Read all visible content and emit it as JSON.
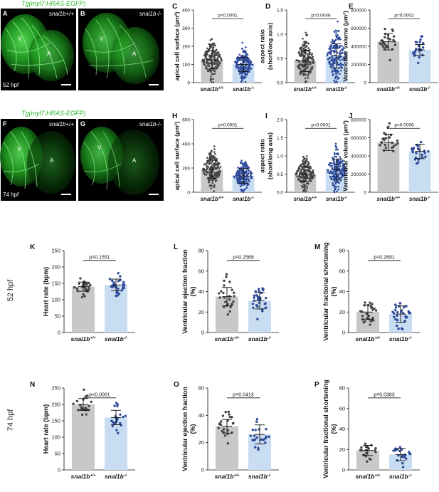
{
  "figure": {
    "construct_label": "Tg(myl7:HRAS-EGFP)",
    "row_stage_labels": [
      "52 hpf",
      "74 hpf"
    ],
    "genotype_wt": "snai1b+/+",
    "genotype_mut": "snai1b-/-"
  },
  "micrographs": [
    {
      "letter": "A",
      "genotype": "snai1b+/+",
      "chamber_labels": [
        "V",
        "A"
      ],
      "stage": "52 hpf"
    },
    {
      "letter": "B",
      "genotype": "snai1b-/-",
      "chamber_labels": [
        "V",
        "A"
      ],
      "stage": ""
    },
    {
      "letter": "F",
      "genotype": "snai1b+/+",
      "chamber_labels": [
        "V",
        "A"
      ],
      "stage": "74 hpf"
    },
    {
      "letter": "G",
      "genotype": "snai1b-/-",
      "chamber_labels": [
        "V",
        "A"
      ],
      "stage": ""
    }
  ],
  "colors": {
    "wt_bar": "#c8c8c8",
    "mut_bar": "#c9ddf2",
    "wt_dot": "#444444",
    "mut_dot": "#2d4a9a",
    "fluor": "#3ec83e"
  },
  "chart_data": [
    {
      "letter": "C",
      "type": "bar",
      "ylabel": "apical cell surface (μm²)",
      "yticks": [
        "0",
        "100",
        "200",
        "300",
        "400"
      ],
      "ylim": [
        0,
        400
      ],
      "categories": [
        "snai1b+/+",
        "snai1b-/-"
      ],
      "means": [
        125,
        100
      ],
      "sd": [
        50,
        40
      ],
      "n": [
        180,
        180
      ],
      "pvalue": "p<0.0001"
    },
    {
      "letter": "D",
      "type": "bar",
      "ylabel": "aspect ratio (short/long axis)",
      "yticks": [
        "0.0",
        "0.5",
        "1.0",
        "1.5"
      ],
      "ylim": [
        0,
        1.5
      ],
      "categories": [
        "snai1b+/+",
        "snai1b-/-"
      ],
      "means": [
        0.45,
        0.55
      ],
      "sd": [
        0.22,
        0.25
      ],
      "n": [
        180,
        180
      ],
      "pvalue": "p=0.0046"
    },
    {
      "letter": "E",
      "type": "bar",
      "ylabel": "Ventricular volume (μm³)",
      "yticks": [
        "0",
        "200000",
        "400000",
        "600000",
        "800000"
      ],
      "ylim": [
        0,
        800000
      ],
      "categories": [
        "snai1b+/+",
        "snai1b-/-"
      ],
      "means": [
        450000,
        360000
      ],
      "sd": [
        90000,
        60000
      ],
      "n": [
        28,
        22
      ],
      "pvalue": "p=0.0002"
    },
    {
      "letter": "H",
      "type": "bar",
      "ylabel": "apical cell surface (μm²)",
      "yticks": [
        "0",
        "200",
        "400",
        "600"
      ],
      "ylim": [
        0,
        600
      ],
      "categories": [
        "snai1b+/+",
        "snai1b-/-"
      ],
      "means": [
        190,
        135
      ],
      "sd": [
        75,
        60
      ],
      "n": [
        180,
        180
      ],
      "pvalue": "p<0.0001"
    },
    {
      "letter": "I",
      "type": "bar",
      "ylabel": "aspect ratio (short/long axis)",
      "yticks": [
        "0.0",
        "0.5",
        "1.0",
        "1.5",
        "2.0"
      ],
      "ylim": [
        0,
        2.0
      ],
      "categories": [
        "snai1b+/+",
        "snai1b-/-"
      ],
      "means": [
        0.5,
        0.62
      ],
      "sd": [
        0.2,
        0.28
      ],
      "n": [
        180,
        180
      ],
      "pvalue": "p<0.0001"
    },
    {
      "letter": "J",
      "type": "bar",
      "ylabel": "Ventricular volume (μm³)",
      "yticks": [
        "0",
        "200000",
        "400000",
        "600000",
        "800000"
      ],
      "ylim": [
        0,
        800000
      ],
      "categories": [
        "snai1b+/+",
        "snai1b-/-"
      ],
      "means": [
        550000,
        450000
      ],
      "sd": [
        90000,
        80000
      ],
      "n": [
        24,
        24
      ],
      "pvalue": "p=0.0006"
    },
    {
      "letter": "K",
      "type": "bar",
      "ylabel": "Heart rate (bpm)",
      "yticks": [
        "0",
        "50",
        "100",
        "150",
        "200",
        "250"
      ],
      "ylim": [
        0,
        250
      ],
      "categories": [
        "snai1b+/+",
        "snai1b-/-"
      ],
      "means": [
        140,
        145
      ],
      "sd": [
        14,
        18
      ],
      "n": [
        26,
        30
      ],
      "pvalue": "p=0.1551"
    },
    {
      "letter": "L",
      "type": "bar",
      "ylabel": "Ventricular ejection fraction (%)",
      "yticks": [
        "0",
        "20",
        "40",
        "60",
        "80"
      ],
      "ylim": [
        0,
        80
      ],
      "categories": [
        "snai1b+/+",
        "snai1b-/-"
      ],
      "means": [
        35,
        31
      ],
      "sd": [
        9,
        8
      ],
      "n": [
        26,
        30
      ],
      "pvalue": "p=0.2569"
    },
    {
      "letter": "M",
      "type": "bar",
      "ylabel": "Ventricular fractional shortening (%)",
      "yticks": [
        "0",
        "20",
        "40",
        "60",
        "80"
      ],
      "ylim": [
        0,
        80
      ],
      "categories": [
        "snai1b+/+",
        "snai1b-/-"
      ],
      "means": [
        20,
        18
      ],
      "sd": [
        7,
        8
      ],
      "n": [
        26,
        30
      ],
      "pvalue": "p=0.2691"
    },
    {
      "letter": "N",
      "type": "bar",
      "ylabel": "Heart rate (bpm)",
      "yticks": [
        "0",
        "50",
        "100",
        "150",
        "200",
        "250"
      ],
      "ylim": [
        0,
        250
      ],
      "categories": [
        "snai1b+/+",
        "snai1b-/-"
      ],
      "means": [
        200,
        160
      ],
      "sd": [
        18,
        22
      ],
      "n": [
        22,
        22
      ],
      "pvalue": "p<0.0001"
    },
    {
      "letter": "O",
      "type": "bar",
      "ylabel": "Ventricular ejection fraction (%)",
      "yticks": [
        "0",
        "20",
        "40",
        "60"
      ],
      "ylim": [
        0,
        60
      ],
      "categories": [
        "snai1b+/+",
        "snai1b-/-"
      ],
      "means": [
        32,
        26
      ],
      "sd": [
        5,
        7
      ],
      "n": [
        22,
        22
      ],
      "pvalue": "p=0.0413"
    },
    {
      "letter": "P",
      "type": "bar",
      "ylabel": "Ventricular fractional shortening (%)",
      "yticks": [
        "0",
        "20",
        "40",
        "60",
        "80"
      ],
      "ylim": [
        0,
        80
      ],
      "categories": [
        "snai1b+/+",
        "snai1b-/-"
      ],
      "means": [
        19,
        15
      ],
      "sd": [
        5,
        6
      ],
      "n": [
        22,
        22
      ],
      "pvalue": "p=0.0383"
    }
  ]
}
